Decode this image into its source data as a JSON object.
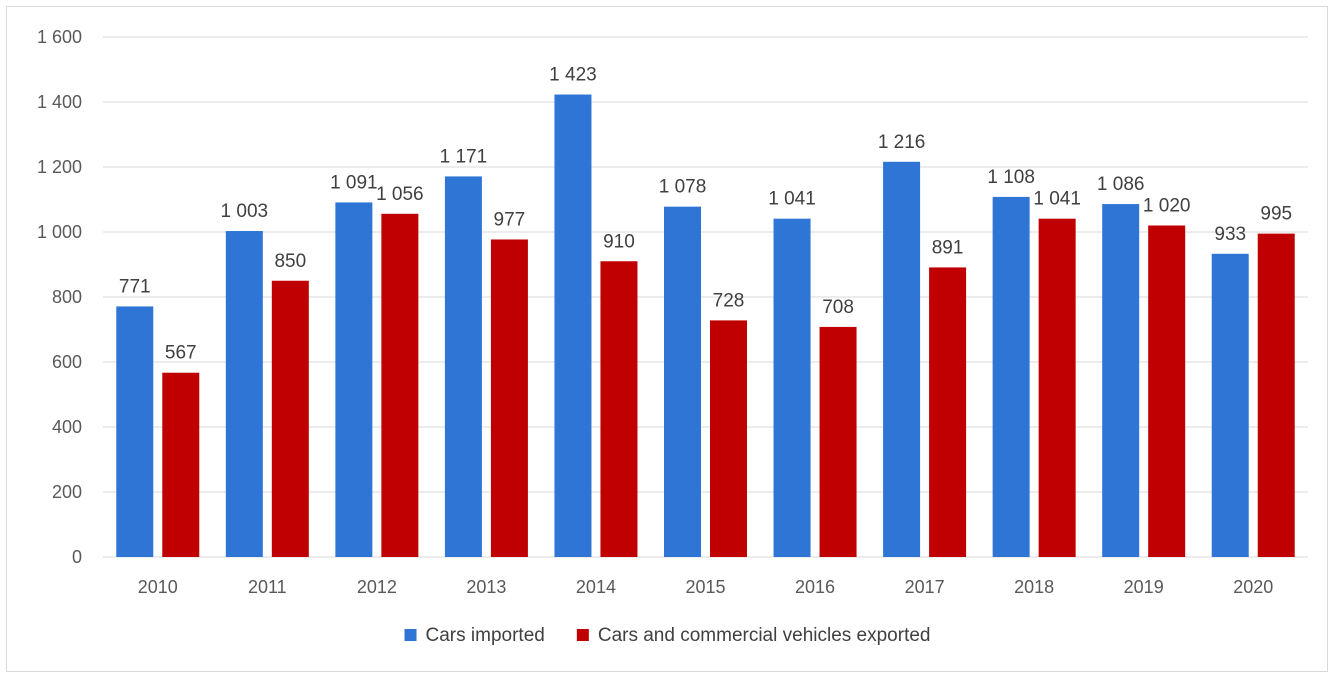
{
  "chart_data": {
    "type": "bar",
    "title": "",
    "xlabel": "",
    "ylabel": "",
    "categories": [
      "2010",
      "2011",
      "2012",
      "2013",
      "2014",
      "2015",
      "2016",
      "2017",
      "2018",
      "2019",
      "2020"
    ],
    "series": [
      {
        "name": "Cars imported",
        "color": "#2e75d6",
        "values": [
          771,
          1003,
          1091,
          1171,
          1423,
          1078,
          1041,
          1216,
          1108,
          1086,
          933
        ],
        "labels": [
          "771",
          "1 003",
          "1 091",
          "1 171",
          "1 423",
          "1 078",
          "1 041",
          "1 216",
          "1 108",
          "1 086",
          "933"
        ]
      },
      {
        "name": "Cars and commercial vehicles exported",
        "color": "#c00000",
        "values": [
          567,
          850,
          1056,
          977,
          910,
          728,
          708,
          891,
          1041,
          1020,
          995
        ],
        "labels": [
          "567",
          "850",
          "1 056",
          "977",
          "910",
          "728",
          "708",
          "891",
          "1 041",
          "1 020",
          "995"
        ]
      }
    ],
    "ylim": [
      0,
      1600
    ],
    "yticks": [
      0,
      200,
      400,
      600,
      800,
      1000,
      1200,
      1400,
      1600
    ],
    "ytick_labels": [
      "0",
      "200",
      "400",
      "600",
      "800",
      "1 000",
      "1 200",
      "1 400",
      "1 600"
    ],
    "grid": true,
    "legend_position": "bottom"
  }
}
